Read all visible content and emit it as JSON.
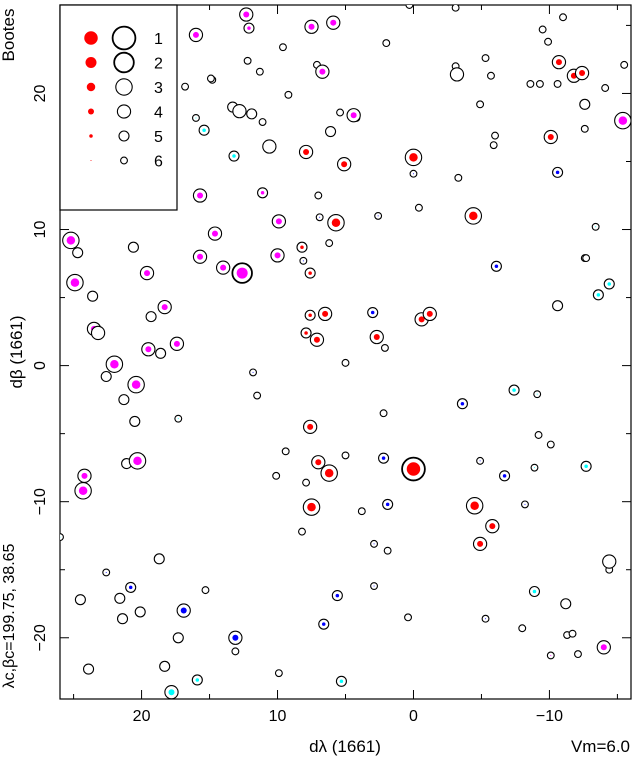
{
  "chart_data": {
    "type": "scatter",
    "title": "Bootes",
    "title_color": "#ff0000",
    "xlabel": "dλ (1661)",
    "ylabel": "dβ (1661)",
    "side_label": "λc,βc=199.75, 38.65",
    "corner_label": "Vm=6.0",
    "xlim": [
      26,
      -16
    ],
    "ylim": [
      -24.5,
      26.5
    ],
    "x_reversed": true,
    "x_ticks": [
      20,
      10,
      0,
      -10
    ],
    "x_tick_labels": [
      "20",
      "10",
      "0",
      "−10"
    ],
    "y_ticks": [
      20,
      10,
      0,
      -10,
      -20
    ],
    "y_tick_labels": [
      "20",
      "10",
      "0",
      "−10",
      "−20"
    ],
    "grid": false,
    "legend": {
      "placement": "top-left",
      "entries": [
        {
          "label": "1",
          "mag": 1
        },
        {
          "label": "2",
          "mag": 2
        },
        {
          "label": "3",
          "mag": 3
        },
        {
          "label": "4",
          "mag": 4
        },
        {
          "label": "5",
          "mag": 5
        },
        {
          "label": "6",
          "mag": 6
        }
      ]
    },
    "colors": {
      "red": "#ff0000",
      "magenta": "#ff00ff",
      "blue": "#0000ff",
      "cyan": "#00ffff",
      "ring": "#000000"
    },
    "stars": [
      {
        "x": 0.0,
        "y": -7.6,
        "mag": 1,
        "color": "red"
      },
      {
        "x": 25.2,
        "y": 9.2,
        "mag": 3,
        "color": "magenta"
      },
      {
        "x": 24.9,
        "y": 6.1,
        "mag": 3,
        "color": "magenta"
      },
      {
        "x": 24.3,
        "y": -9.2,
        "mag": 3,
        "color": "magenta"
      },
      {
        "x": 24.2,
        "y": -8.1,
        "mag": 4,
        "color": "magenta"
      },
      {
        "x": 23.5,
        "y": 2.7,
        "mag": 4,
        "color": "magenta"
      },
      {
        "x": 22.0,
        "y": 0.1,
        "mag": 3,
        "color": "magenta"
      },
      {
        "x": 20.4,
        "y": -1.4,
        "mag": 3,
        "color": "magenta"
      },
      {
        "x": 20.3,
        "y": -7.0,
        "mag": 3,
        "color": "magenta"
      },
      {
        "x": 19.6,
        "y": 6.8,
        "mag": 4,
        "color": "magenta"
      },
      {
        "x": 19.5,
        "y": 1.2,
        "mag": 4,
        "color": "magenta"
      },
      {
        "x": 18.3,
        "y": 4.3,
        "mag": 4,
        "color": "magenta"
      },
      {
        "x": 17.4,
        "y": 1.6,
        "mag": 4,
        "color": "magenta"
      },
      {
        "x": 16.9,
        "y": -18.0,
        "mag": 4,
        "color": "blue"
      },
      {
        "x": 16.0,
        "y": 24.3,
        "mag": 4,
        "color": "magenta"
      },
      {
        "x": 15.7,
        "y": 12.5,
        "mag": 4,
        "color": "magenta"
      },
      {
        "x": 15.7,
        "y": 8.0,
        "mag": 4,
        "color": "magenta"
      },
      {
        "x": 15.4,
        "y": 17.3,
        "mag": 5,
        "color": "cyan"
      },
      {
        "x": 14.8,
        "y": 21.0,
        "mag": 6,
        "color": "cyan"
      },
      {
        "x": 14.6,
        "y": 9.7,
        "mag": 4,
        "color": "magenta"
      },
      {
        "x": 14.0,
        "y": 7.2,
        "mag": 4,
        "color": "magenta"
      },
      {
        "x": 13.2,
        "y": 15.4,
        "mag": 5,
        "color": "cyan"
      },
      {
        "x": 13.1,
        "y": -20.0,
        "mag": 4,
        "color": "blue"
      },
      {
        "x": 12.6,
        "y": 6.8,
        "mag": 2,
        "color": "magenta"
      },
      {
        "x": 12.3,
        "y": 25.8,
        "mag": 4,
        "color": "magenta"
      },
      {
        "x": 12.1,
        "y": 24.8,
        "mag": 5,
        "color": "magenta"
      },
      {
        "x": 11.8,
        "y": -0.5,
        "mag": 6,
        "color": "blue"
      },
      {
        "x": 11.1,
        "y": 12.7,
        "mag": 5,
        "color": "magenta"
      },
      {
        "x": 10.0,
        "y": 8.1,
        "mag": 4,
        "color": "magenta"
      },
      {
        "x": 9.9,
        "y": 10.6,
        "mag": 4,
        "color": "magenta"
      },
      {
        "x": 7.9,
        "y": 15.7,
        "mag": 4,
        "color": "red"
      },
      {
        "x": 8.2,
        "y": 8.7,
        "mag": 5,
        "color": "red"
      },
      {
        "x": 8.1,
        "y": 7.7,
        "mag": 6,
        "color": "blue"
      },
      {
        "x": 7.9,
        "y": 2.4,
        "mag": 5,
        "color": "red"
      },
      {
        "x": 7.6,
        "y": 3.7,
        "mag": 5,
        "color": "red"
      },
      {
        "x": 7.6,
        "y": -4.5,
        "mag": 4,
        "color": "red"
      },
      {
        "x": 7.6,
        "y": 6.8,
        "mag": 5,
        "color": "red"
      },
      {
        "x": 7.5,
        "y": 24.9,
        "mag": 4,
        "color": "magenta"
      },
      {
        "x": 7.5,
        "y": -10.4,
        "mag": 3,
        "color": "red"
      },
      {
        "x": 7.1,
        "y": 1.9,
        "mag": 4,
        "color": "red"
      },
      {
        "x": 7.0,
        "y": -7.1,
        "mag": 4,
        "color": "red"
      },
      {
        "x": 6.9,
        "y": 10.9,
        "mag": 6,
        "color": "blue"
      },
      {
        "x": 6.7,
        "y": 21.6,
        "mag": 4,
        "color": "magenta"
      },
      {
        "x": 6.6,
        "y": -19.0,
        "mag": 5,
        "color": "blue"
      },
      {
        "x": 6.5,
        "y": 3.8,
        "mag": 4,
        "color": "red"
      },
      {
        "x": 6.2,
        "y": -7.9,
        "mag": 3,
        "color": "red"
      },
      {
        "x": 5.9,
        "y": 25.2,
        "mag": 4,
        "color": "magenta"
      },
      {
        "x": 5.7,
        "y": 10.5,
        "mag": 3,
        "color": "red"
      },
      {
        "x": 5.6,
        "y": -16.9,
        "mag": 5,
        "color": "blue"
      },
      {
        "x": 5.3,
        "y": -23.2,
        "mag": 5,
        "color": "cyan"
      },
      {
        "x": 5.1,
        "y": 14.8,
        "mag": 4,
        "color": "red"
      },
      {
        "x": 4.4,
        "y": 18.4,
        "mag": 4,
        "color": "magenta"
      },
      {
        "x": 3.0,
        "y": 3.9,
        "mag": 5,
        "color": "blue"
      },
      {
        "x": 2.7,
        "y": 2.1,
        "mag": 4,
        "color": "red"
      },
      {
        "x": 2.6,
        "y": 11.0,
        "mag": 6,
        "color": "blue"
      },
      {
        "x": 2.2,
        "y": -6.8,
        "mag": 5,
        "color": "blue"
      },
      {
        "x": 1.9,
        "y": -10.2,
        "mag": 5,
        "color": "blue"
      },
      {
        "x": 2.9,
        "y": -13.1,
        "mag": 6,
        "color": "blue"
      },
      {
        "x": 2.9,
        "y": -16.2,
        "mag": 6,
        "color": "blue"
      },
      {
        "x": 0.0,
        "y": 15.3,
        "mag": 3,
        "color": "red"
      },
      {
        "x": 0.0,
        "y": 14.1,
        "mag": 6,
        "color": "blue"
      },
      {
        "x": -0.6,
        "y": 3.4,
        "mag": 4,
        "color": "red"
      },
      {
        "x": -1.2,
        "y": 3.8,
        "mag": 4,
        "color": "red"
      },
      {
        "x": -3.6,
        "y": -2.8,
        "mag": 5,
        "color": "blue"
      },
      {
        "x": -4.4,
        "y": 11.0,
        "mag": 3,
        "color": "red"
      },
      {
        "x": -4.5,
        "y": -10.3,
        "mag": 3,
        "color": "red"
      },
      {
        "x": -4.9,
        "y": -7.0,
        "mag": 6,
        "color": "blue"
      },
      {
        "x": -4.9,
        "y": -13.1,
        "mag": 4,
        "color": "red"
      },
      {
        "x": -5.3,
        "y": -18.6,
        "mag": 6,
        "color": "blue"
      },
      {
        "x": -5.8,
        "y": -11.8,
        "mag": 4,
        "color": "red"
      },
      {
        "x": -6.1,
        "y": 7.3,
        "mag": 5,
        "color": "blue"
      },
      {
        "x": -6.7,
        "y": -8.1,
        "mag": 5,
        "color": "blue"
      },
      {
        "x": -7.4,
        "y": -1.8,
        "mag": 5,
        "color": "cyan"
      },
      {
        "x": -8.2,
        "y": -10.2,
        "mag": 6,
        "color": "blue"
      },
      {
        "x": -8.9,
        "y": -16.6,
        "mag": 5,
        "color": "cyan"
      },
      {
        "x": -8.9,
        "y": -7.5,
        "mag": 6,
        "color": "cyan"
      },
      {
        "x": -9.1,
        "y": -2.1,
        "mag": 6,
        "color": "cyan"
      },
      {
        "x": -10.1,
        "y": 16.8,
        "mag": 4,
        "color": "red"
      },
      {
        "x": -10.1,
        "y": -21.3,
        "mag": 6,
        "color": "magenta"
      },
      {
        "x": -10.6,
        "y": 14.2,
        "mag": 5,
        "color": "blue"
      },
      {
        "x": -10.7,
        "y": 22.3,
        "mag": 4,
        "color": "red"
      },
      {
        "x": -11.8,
        "y": 21.3,
        "mag": 4,
        "color": "red"
      },
      {
        "x": -12.4,
        "y": 21.5,
        "mag": 4,
        "color": "red"
      },
      {
        "x": -12.6,
        "y": 7.9,
        "mag": 6,
        "color": "cyan"
      },
      {
        "x": -12.7,
        "y": -7.4,
        "mag": 5,
        "color": "cyan"
      },
      {
        "x": -13.4,
        "y": 10.2,
        "mag": 6,
        "color": "cyan"
      },
      {
        "x": -13.6,
        "y": 5.2,
        "mag": 5,
        "color": "cyan"
      },
      {
        "x": -14.4,
        "y": 6.0,
        "mag": 5,
        "color": "cyan"
      },
      {
        "x": -15.4,
        "y": 18.0,
        "mag": 3,
        "color": "magenta"
      },
      {
        "x": -14.0,
        "y": -20.7,
        "mag": 4,
        "color": "magenta"
      },
      {
        "x": 17.8,
        "y": -24.0,
        "mag": 4,
        "color": "cyan"
      },
      {
        "x": 15.9,
        "y": -23.1,
        "mag": 5,
        "color": "cyan"
      },
      {
        "x": 22.6,
        "y": -15.2,
        "mag": 6,
        "color": "blue"
      },
      {
        "x": 20.8,
        "y": -16.3,
        "mag": 5,
        "color": "blue"
      },
      {
        "x": 26.0,
        "y": -12.6,
        "mag": 6,
        "color": "cyan"
      },
      {
        "x": 17.3,
        "y": -3.9,
        "mag": 6,
        "color": "cyan"
      },
      {
        "x": 21.0,
        "y": 26.4,
        "mag": 3,
        "color": "magenta"
      },
      {
        "x": 16.0,
        "y": 18.2,
        "mag": 6,
        "color": "cyan"
      },
      {
        "x": 12.1,
        "y": 24.8,
        "mag": 6,
        "color": "magenta"
      },
      {
        "x": 24.7,
        "y": 8.3,
        "mag": 5,
        "color": "none"
      },
      {
        "x": 23.6,
        "y": 5.1,
        "mag": 5,
        "color": "none"
      },
      {
        "x": 23.2,
        "y": 2.4,
        "mag": 4,
        "color": "none"
      },
      {
        "x": 22.6,
        "y": -0.8,
        "mag": 5,
        "color": "none"
      },
      {
        "x": 21.1,
        "y": -7.2,
        "mag": 5,
        "color": "none"
      },
      {
        "x": 20.6,
        "y": 8.7,
        "mag": 5,
        "color": "none"
      },
      {
        "x": 20.5,
        "y": -4.1,
        "mag": 5,
        "color": "none"
      },
      {
        "x": 21.3,
        "y": -2.5,
        "mag": 5,
        "color": "none"
      },
      {
        "x": 21.6,
        "y": -17.1,
        "mag": 5,
        "color": "none"
      },
      {
        "x": 21.4,
        "y": -18.6,
        "mag": 5,
        "color": "none"
      },
      {
        "x": 20.1,
        "y": -18.1,
        "mag": 5,
        "color": "none"
      },
      {
        "x": 24.5,
        "y": -17.2,
        "mag": 5,
        "color": "none"
      },
      {
        "x": 23.9,
        "y": -22.3,
        "mag": 5,
        "color": "none"
      },
      {
        "x": 19.3,
        "y": 3.6,
        "mag": 5,
        "color": "none"
      },
      {
        "x": 18.6,
        "y": 0.9,
        "mag": 5,
        "color": "none"
      },
      {
        "x": 18.7,
        "y": -14.2,
        "mag": 5,
        "color": "none"
      },
      {
        "x": 18.3,
        "y": -22.1,
        "mag": 5,
        "color": "none"
      },
      {
        "x": 17.3,
        "y": -20.0,
        "mag": 5,
        "color": "none"
      },
      {
        "x": 15.3,
        "y": -16.5,
        "mag": 6,
        "color": "none"
      },
      {
        "x": 14.5,
        "y": 9.7,
        "mag": 6,
        "color": "none"
      },
      {
        "x": 14.9,
        "y": 21.1,
        "mag": 6,
        "color": "none"
      },
      {
        "x": 13.3,
        "y": 19.0,
        "mag": 5,
        "color": "none"
      },
      {
        "x": 12.8,
        "y": 18.7,
        "mag": 4,
        "color": "none"
      },
      {
        "x": 12.2,
        "y": 22.4,
        "mag": 6,
        "color": "none"
      },
      {
        "x": 11.9,
        "y": 18.5,
        "mag": 5,
        "color": "none"
      },
      {
        "x": 11.5,
        "y": -2.2,
        "mag": 6,
        "color": "none"
      },
      {
        "x": 11.1,
        "y": 17.9,
        "mag": 6,
        "color": "none"
      },
      {
        "x": 10.6,
        "y": 16.1,
        "mag": 4,
        "color": "none"
      },
      {
        "x": 10.1,
        "y": -8.1,
        "mag": 6,
        "color": "none"
      },
      {
        "x": 9.6,
        "y": 23.4,
        "mag": 6,
        "color": "none"
      },
      {
        "x": 9.4,
        "y": -6.3,
        "mag": 6,
        "color": "none"
      },
      {
        "x": 9.2,
        "y": 19.9,
        "mag": 6,
        "color": "none"
      },
      {
        "x": 9.9,
        "y": -22.6,
        "mag": 6,
        "color": "none"
      },
      {
        "x": 13.1,
        "y": -21.0,
        "mag": 6,
        "color": "none"
      },
      {
        "x": 8.2,
        "y": -12.2,
        "mag": 6,
        "color": "none"
      },
      {
        "x": 7.9,
        "y": -8.6,
        "mag": 6,
        "color": "none"
      },
      {
        "x": 7.1,
        "y": 22.1,
        "mag": 6,
        "color": "none"
      },
      {
        "x": 7.0,
        "y": 12.5,
        "mag": 6,
        "color": "none"
      },
      {
        "x": 6.2,
        "y": 9.0,
        "mag": 6,
        "color": "none"
      },
      {
        "x": 6.1,
        "y": 17.2,
        "mag": 5,
        "color": "none"
      },
      {
        "x": 5.4,
        "y": 18.6,
        "mag": 6,
        "color": "none"
      },
      {
        "x": 5.0,
        "y": 0.2,
        "mag": 6,
        "color": "none"
      },
      {
        "x": 5.0,
        "y": -6.6,
        "mag": 6,
        "color": "none"
      },
      {
        "x": 4.2,
        "y": 18.2,
        "mag": 6,
        "color": "none"
      },
      {
        "x": 3.8,
        "y": -10.7,
        "mag": 6,
        "color": "none"
      },
      {
        "x": 2.0,
        "y": 23.7,
        "mag": 6,
        "color": "none"
      },
      {
        "x": 2.1,
        "y": 1.3,
        "mag": 6,
        "color": "none"
      },
      {
        "x": 2.2,
        "y": -3.5,
        "mag": 6,
        "color": "none"
      },
      {
        "x": 1.9,
        "y": -13.6,
        "mag": 6,
        "color": "none"
      },
      {
        "x": 0.3,
        "y": 26.5,
        "mag": 6,
        "color": "none"
      },
      {
        "x": -0.4,
        "y": 11.6,
        "mag": 6,
        "color": "none"
      },
      {
        "x": 0.4,
        "y": -18.5,
        "mag": 6,
        "color": "none"
      },
      {
        "x": -3.1,
        "y": 22.0,
        "mag": 6,
        "color": "none"
      },
      {
        "x": -3.2,
        "y": 21.4,
        "mag": 4,
        "color": "none"
      },
      {
        "x": -3.1,
        "y": 26.3,
        "mag": 6,
        "color": "none"
      },
      {
        "x": -3.3,
        "y": 13.8,
        "mag": 6,
        "color": "none"
      },
      {
        "x": -4.9,
        "y": 19.2,
        "mag": 6,
        "color": "none"
      },
      {
        "x": -5.3,
        "y": 22.6,
        "mag": 6,
        "color": "none"
      },
      {
        "x": -5.7,
        "y": 21.3,
        "mag": 6,
        "color": "none"
      },
      {
        "x": -5.9,
        "y": 16.2,
        "mag": 6,
        "color": "none"
      },
      {
        "x": -6.0,
        "y": 16.9,
        "mag": 6,
        "color": "none"
      },
      {
        "x": -8.0,
        "y": -19.3,
        "mag": 6,
        "color": "none"
      },
      {
        "x": -8.6,
        "y": 20.7,
        "mag": 6,
        "color": "none"
      },
      {
        "x": -9.5,
        "y": 24.7,
        "mag": 6,
        "color": "none"
      },
      {
        "x": -9.3,
        "y": 20.7,
        "mag": 6,
        "color": "none"
      },
      {
        "x": -9.9,
        "y": 23.8,
        "mag": 6,
        "color": "none"
      },
      {
        "x": -10.1,
        "y": -5.8,
        "mag": 6,
        "color": "none"
      },
      {
        "x": -10.6,
        "y": 4.4,
        "mag": 5,
        "color": "none"
      },
      {
        "x": -10.6,
        "y": 20.7,
        "mag": 6,
        "color": "none"
      },
      {
        "x": -11.0,
        "y": 25.6,
        "mag": 6,
        "color": "none"
      },
      {
        "x": -11.2,
        "y": -17.5,
        "mag": 5,
        "color": "none"
      },
      {
        "x": -11.3,
        "y": -19.8,
        "mag": 6,
        "color": "none"
      },
      {
        "x": -11.7,
        "y": -19.7,
        "mag": 6,
        "color": "none"
      },
      {
        "x": -12.1,
        "y": -21.2,
        "mag": 6,
        "color": "none"
      },
      {
        "x": -12.6,
        "y": 19.2,
        "mag": 5,
        "color": "none"
      },
      {
        "x": -12.6,
        "y": 17.4,
        "mag": 6,
        "color": "none"
      },
      {
        "x": -12.7,
        "y": 7.9,
        "mag": 6,
        "color": "none"
      },
      {
        "x": -14.1,
        "y": 20.4,
        "mag": 6,
        "color": "none"
      },
      {
        "x": -14.4,
        "y": -14.4,
        "mag": 4,
        "color": "none"
      },
      {
        "x": -14.4,
        "y": -15.0,
        "mag": 6,
        "color": "none"
      },
      {
        "x": -15.5,
        "y": 22.1,
        "mag": 6,
        "color": "none"
      },
      {
        "x": -9.2,
        "y": -5.1,
        "mag": 6,
        "color": "none"
      },
      {
        "x": 11.3,
        "y": 21.6,
        "mag": 6,
        "color": "none"
      },
      {
        "x": 16.8,
        "y": 20.5,
        "mag": 6,
        "color": "none"
      }
    ]
  }
}
